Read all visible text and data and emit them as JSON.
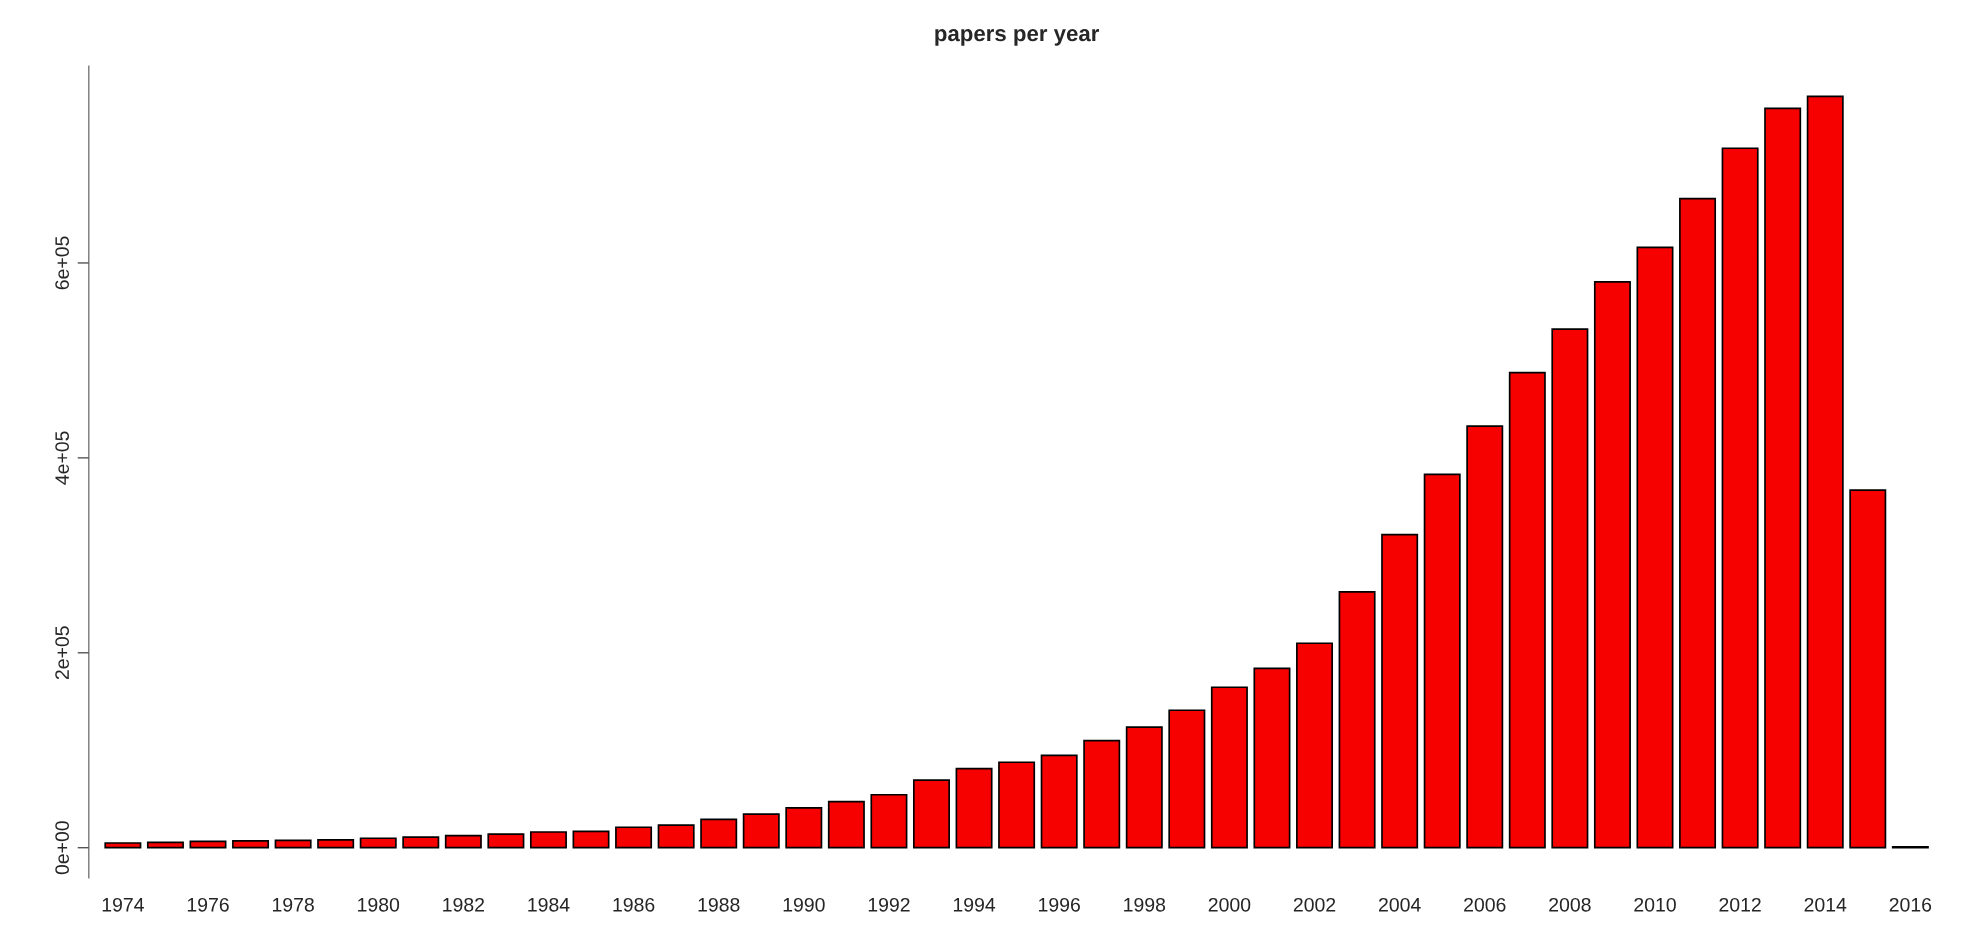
{
  "chart_data": {
    "type": "bar",
    "title": "papers per year",
    "categories": [
      "1974",
      null,
      "1976",
      null,
      "1978",
      null,
      "1980",
      null,
      "1982",
      null,
      "1984",
      null,
      "1986",
      null,
      "1988",
      null,
      "1990",
      null,
      "1992",
      null,
      "1994",
      null,
      "1996",
      null,
      "1998",
      null,
      "2000",
      null,
      "2002",
      null,
      "2004",
      null,
      "2006",
      null,
      "2008",
      null,
      "2010",
      null,
      "2012",
      null,
      "2014",
      null,
      "2016"
    ],
    "values": [
      4800,
      5400,
      6500,
      7000,
      7500,
      8100,
      9700,
      10800,
      12400,
      14000,
      16100,
      16700,
      21000,
      23100,
      29000,
      34400,
      40900,
      47300,
      54300,
      69400,
      81200,
      87700,
      94700,
      109800,
      123700,
      141000,
      164600,
      184000,
      209800,
      262500,
      321200,
      383100,
      432600,
      487400,
      532100,
      580500,
      616000,
      666000,
      717700,
      758600,
      771000,
      366900,
      1000
    ],
    "color": "#f70000",
    "ylim": [
      -31000,
      802000
    ],
    "yticks": [
      {
        "value": 0,
        "label": "0e+00"
      },
      {
        "value": 200000,
        "label": "2e+05"
      },
      {
        "value": 400000,
        "label": "4e+05"
      },
      {
        "value": 600000,
        "label": "6e+05"
      }
    ],
    "grid": false,
    "legend": false
  }
}
